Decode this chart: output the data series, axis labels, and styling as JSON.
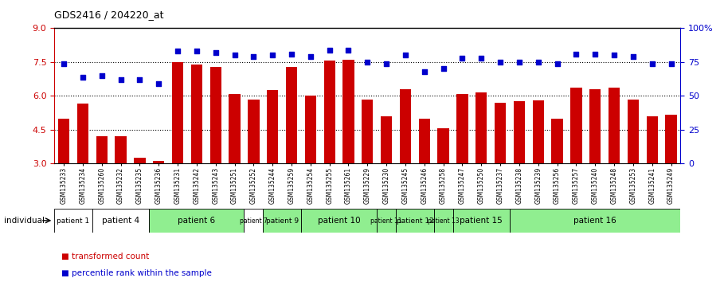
{
  "title": "GDS2416 / 204220_at",
  "samples": [
    "GSM135233",
    "GSM135234",
    "GSM135260",
    "GSM135232",
    "GSM135235",
    "GSM135236",
    "GSM135231",
    "GSM135242",
    "GSM135243",
    "GSM135251",
    "GSM135252",
    "GSM135244",
    "GSM135259",
    "GSM135254",
    "GSM135255",
    "GSM135261",
    "GSM135229",
    "GSM135230",
    "GSM135245",
    "GSM135246",
    "GSM135258",
    "GSM135247",
    "GSM135250",
    "GSM135237",
    "GSM135238",
    "GSM135239",
    "GSM135256",
    "GSM135257",
    "GSM135240",
    "GSM135248",
    "GSM135253",
    "GSM135241",
    "GSM135249"
  ],
  "bar_values": [
    5.0,
    5.65,
    4.2,
    4.2,
    3.25,
    3.1,
    7.5,
    7.4,
    7.3,
    6.1,
    5.85,
    6.25,
    7.3,
    6.0,
    7.55,
    7.6,
    5.85,
    5.1,
    6.3,
    5.0,
    4.55,
    6.1,
    6.15,
    5.7,
    5.75,
    5.8,
    5.0,
    6.35,
    6.3,
    6.35,
    5.85,
    5.1,
    5.15
  ],
  "blue_values": [
    74,
    64,
    65,
    62,
    62,
    59,
    83,
    83,
    82,
    80,
    79,
    80,
    81,
    79,
    84,
    84,
    75,
    74,
    80,
    68,
    70,
    78,
    78,
    75,
    75,
    75,
    74,
    81,
    81,
    80,
    79,
    74,
    74
  ],
  "patient_configs": [
    {
      "label": "patient 1",
      "start": 0,
      "end": 2,
      "color": "#ffffff"
    },
    {
      "label": "patient 4",
      "start": 2,
      "end": 5,
      "color": "#ffffff"
    },
    {
      "label": "patient 6",
      "start": 5,
      "end": 10,
      "color": "#90ee90"
    },
    {
      "label": "patient 7",
      "start": 10,
      "end": 11,
      "color": "#ffffff"
    },
    {
      "label": "patient 9",
      "start": 11,
      "end": 13,
      "color": "#90ee90"
    },
    {
      "label": "patient 10",
      "start": 13,
      "end": 17,
      "color": "#90ee90"
    },
    {
      "label": "patient 11",
      "start": 17,
      "end": 18,
      "color": "#90ee90"
    },
    {
      "label": "patient 12",
      "start": 18,
      "end": 20,
      "color": "#90ee90"
    },
    {
      "label": "patient 13",
      "start": 20,
      "end": 21,
      "color": "#90ee90"
    },
    {
      "label": "patient 15",
      "start": 21,
      "end": 24,
      "color": "#90ee90"
    },
    {
      "label": "patient 16",
      "start": 24,
      "end": 33,
      "color": "#90ee90"
    }
  ],
  "ylim_left": [
    3,
    9
  ],
  "ylim_right": [
    0,
    100
  ],
  "yticks_left": [
    3,
    4.5,
    6,
    7.5,
    9
  ],
  "yticks_right": [
    0,
    25,
    50,
    75,
    100
  ],
  "bar_color": "#cc0000",
  "dot_color": "#0000cc",
  "left_axis_color": "#cc0000",
  "right_axis_color": "#0000cc",
  "hline_values": [
    4.5,
    6.0,
    7.5
  ]
}
